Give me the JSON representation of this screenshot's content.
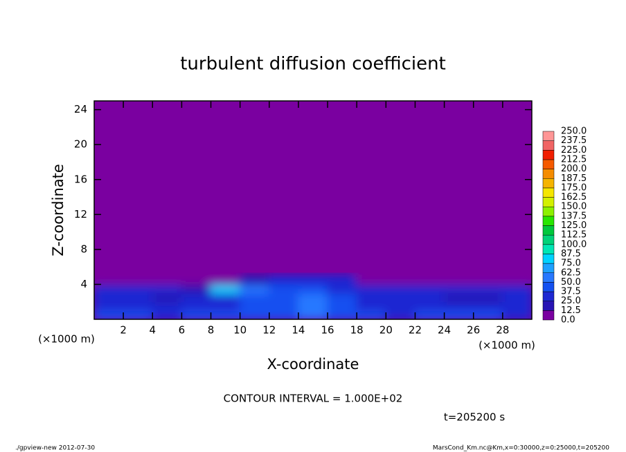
{
  "chart_data": {
    "type": "contour",
    "title": "turbulent diffusion coefficient",
    "xlabel": "X-coordinate",
    "ylabel": "Z-coordinate",
    "x_unit_label": "(×1000 m)",
    "y_unit_label": "(×1000 m)",
    "xlim": [
      0,
      30
    ],
    "ylim": [
      0,
      25
    ],
    "xticks": [
      2,
      4,
      6,
      8,
      10,
      12,
      14,
      16,
      18,
      20,
      22,
      24,
      26,
      28
    ],
    "yticks": [
      4,
      8,
      12,
      16,
      20,
      24
    ],
    "x": [
      1,
      3,
      5,
      7,
      9,
      11,
      13,
      15,
      17,
      19,
      21,
      23,
      25,
      27,
      29
    ],
    "z": [
      0.5,
      1.5,
      2.5,
      3.5,
      4.5
    ],
    "values": [
      [
        40,
        40,
        35,
        40,
        40,
        40,
        45,
        50,
        45,
        40,
        35,
        40,
        40,
        40,
        35
      ],
      [
        35,
        30,
        25,
        30,
        35,
        40,
        45,
        55,
        45,
        35,
        30,
        35,
        30,
        25,
        30
      ],
      [
        30,
        25,
        20,
        25,
        35,
        45,
        45,
        50,
        45,
        35,
        30,
        25,
        20,
        20,
        25
      ],
      [
        25,
        25,
        30,
        20,
        75,
        60,
        40,
        40,
        35,
        30,
        30,
        30,
        30,
        30,
        25
      ],
      [
        0,
        0,
        0,
        0,
        0,
        15,
        35,
        35,
        30,
        0,
        0,
        0,
        0,
        0,
        0
      ]
    ],
    "levels": [
      {
        "value": 0,
        "label": "0.0"
      },
      {
        "value": 12.5,
        "label": "12.5"
      },
      {
        "value": 25,
        "label": "25.0"
      },
      {
        "value": 37.5,
        "label": "37.5"
      },
      {
        "value": 50,
        "label": "50.0"
      },
      {
        "value": 62.5,
        "label": "62.5"
      },
      {
        "value": 75,
        "label": "75.0"
      },
      {
        "value": 87.5,
        "label": "87.5"
      },
      {
        "value": 100,
        "label": "100.0"
      },
      {
        "value": 112.5,
        "label": "112.5"
      },
      {
        "value": 125,
        "label": "125.0"
      },
      {
        "value": 137.5,
        "label": "137.5"
      },
      {
        "value": 150,
        "label": "150.0"
      },
      {
        "value": 162.5,
        "label": "162.5"
      },
      {
        "value": 175,
        "label": "175.0"
      },
      {
        "value": 187.5,
        "label": "187.5"
      },
      {
        "value": 200,
        "label": "200.0"
      },
      {
        "value": 212.5,
        "label": "212.5"
      },
      {
        "value": 225,
        "label": "225.0"
      },
      {
        "value": 237.5,
        "label": "237.5"
      },
      {
        "value": 250,
        "label": "250.0"
      }
    ],
    "colors": [
      "#7a00a0",
      "#2814b4",
      "#1e28d2",
      "#1450f0",
      "#2878ff",
      "#1ea0ff",
      "#00d2ff",
      "#00e6b4",
      "#00d278",
      "#00c83c",
      "#28e600",
      "#8cf000",
      "#d2f000",
      "#f5e600",
      "#f5b400",
      "#f58c00",
      "#f55a00",
      "#f01e00",
      "#f06464",
      "#ff9696"
    ],
    "contour_interval": "CONTOUR INTERVAL = 1.000E+02",
    "time_label": "t=205200 s",
    "footer_left": "./gpview-new   2012-07-30",
    "footer_right": "MarsCond_Km.nc@Km,x=0:30000,z=0:25000,t=205200"
  }
}
